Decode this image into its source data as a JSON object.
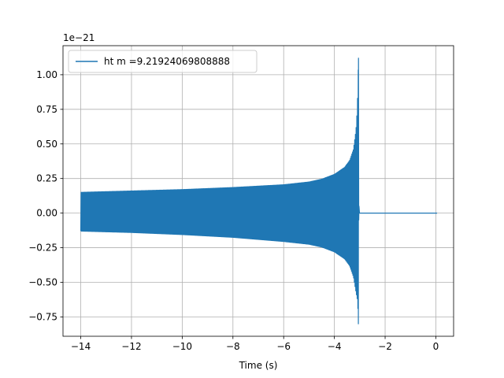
{
  "chart_data": {
    "type": "line",
    "xlabel": "Time (s)",
    "ylabel": "",
    "y_offset_label": "1e−21",
    "xlim": [
      -14.7,
      0.7
    ],
    "ylim": [
      -0.89,
      1.21
    ],
    "x_ticks": [
      -14,
      -12,
      -10,
      -8,
      -6,
      -4,
      -2,
      0
    ],
    "x_tick_labels": [
      "−14",
      "−12",
      "−10",
      "−8",
      "−6",
      "−4",
      "−2",
      "0"
    ],
    "y_ticks": [
      -0.75,
      -0.5,
      -0.25,
      0.0,
      0.25,
      0.5,
      0.75,
      1.0
    ],
    "y_tick_labels": [
      "−0.75",
      "−0.50",
      "−0.25",
      "0.00",
      "0.25",
      "0.50",
      "0.75",
      "1.00"
    ],
    "grid": true,
    "legend_position": "top-left",
    "series": [
      {
        "name": "ht m =9.21924069808888",
        "color": "#1f77b4",
        "signal": {
          "t_start": -14.0,
          "t_merger": -3.05,
          "t_end": 0.05,
          "amp_start": 0.15,
          "amp_mid": 0.21,
          "peak_max": 1.12,
          "peak_min": -0.8
        },
        "envelope": {
          "t": [
            -14.0,
            -12.0,
            -10.0,
            -8.0,
            -6.0,
            -5.0,
            -4.5,
            -4.0,
            -3.6,
            -3.4,
            -3.25,
            -3.15,
            -3.1,
            -3.07,
            -3.05
          ],
          "upper": [
            0.15,
            0.16,
            0.17,
            0.185,
            0.205,
            0.225,
            0.245,
            0.28,
            0.33,
            0.38,
            0.46,
            0.6,
            0.75,
            0.95,
            1.12
          ],
          "lower": [
            -0.13,
            -0.14,
            -0.155,
            -0.175,
            -0.205,
            -0.225,
            -0.245,
            -0.28,
            -0.33,
            -0.38,
            -0.46,
            -0.57,
            -0.62,
            -0.7,
            -0.8
          ]
        }
      }
    ]
  }
}
